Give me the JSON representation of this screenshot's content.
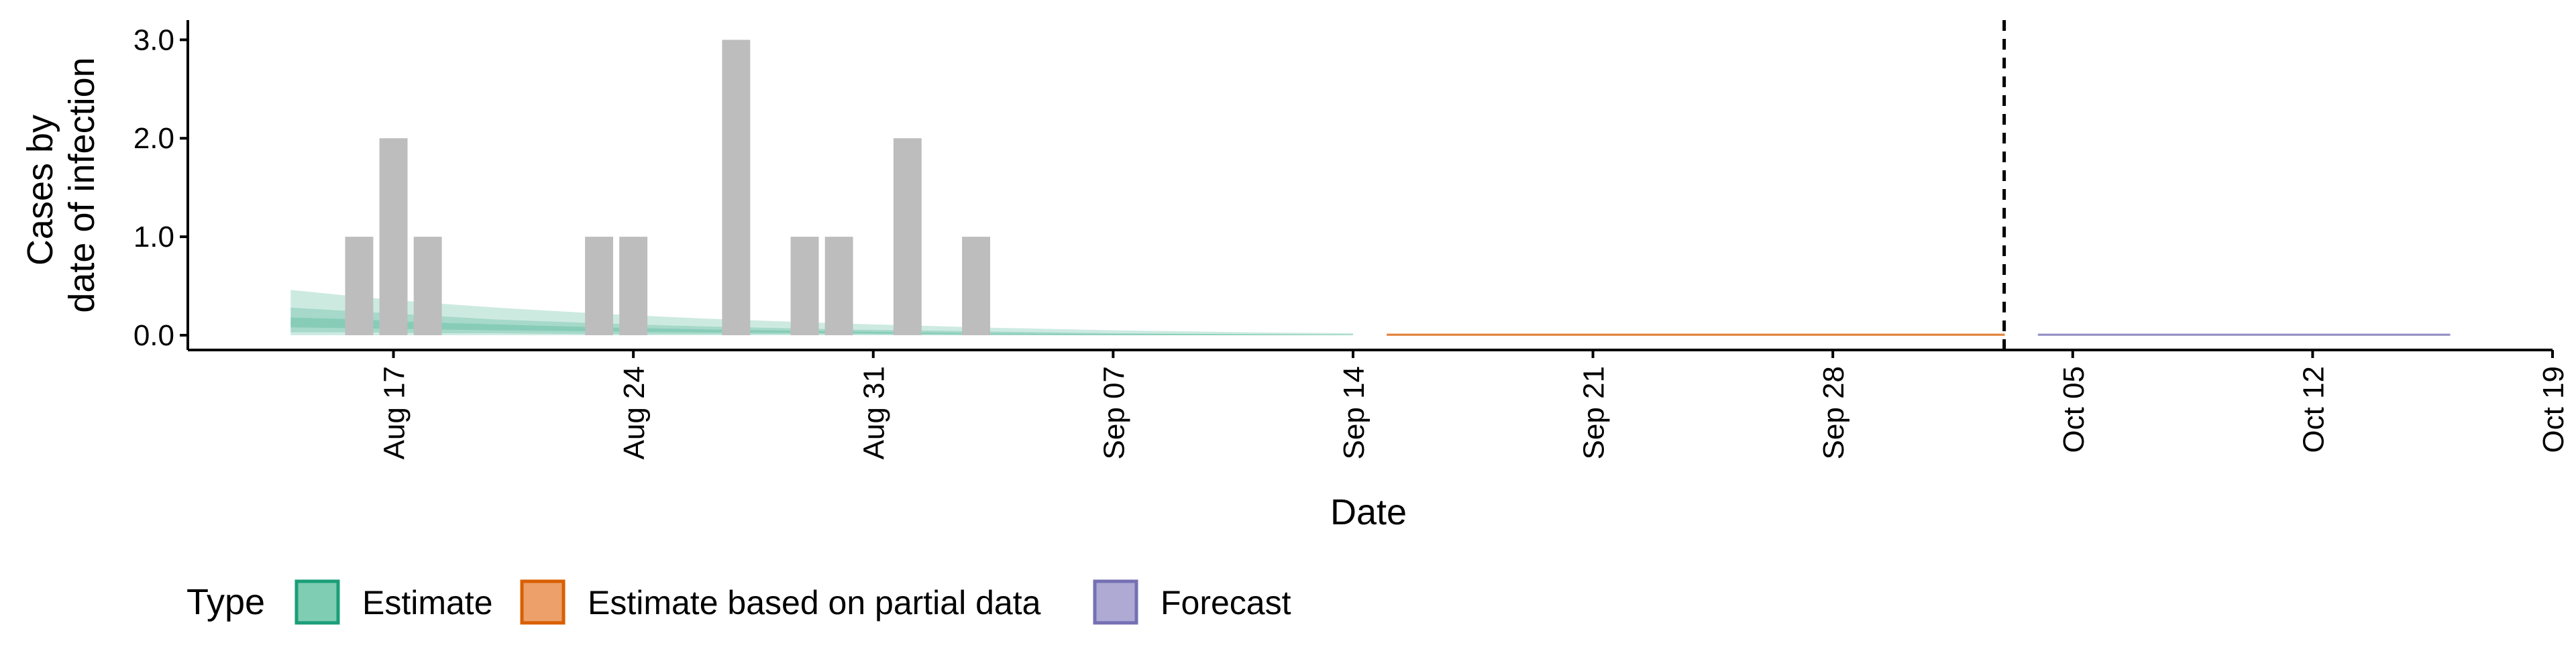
{
  "chart_data": {
    "type": "bar",
    "title": "",
    "xlabel": "Date",
    "ylabel": [
      "Cases by",
      "date of infection"
    ],
    "x_ticks": [
      "Aug 17",
      "Aug 24",
      "Aug 31",
      "Sep 07",
      "Sep 14",
      "Sep 21",
      "Sep 28",
      "Oct 05",
      "Oct 12",
      "Oct 19"
    ],
    "y_ticks": [
      "0.0",
      "1.0",
      "2.0",
      "3.0"
    ],
    "xlim": [
      "2020-08-11",
      "2020-10-19"
    ],
    "ylim": [
      -0.15,
      3.2
    ],
    "grid": false,
    "vline": {
      "x": "2020-10-03",
      "style": "dashed"
    },
    "bars": {
      "dates": [
        "2020-08-16",
        "2020-08-17",
        "2020-08-18",
        "2020-08-23",
        "2020-08-24",
        "2020-08-27",
        "2020-08-29",
        "2020-08-30",
        "2020-09-01",
        "2020-09-03"
      ],
      "values": [
        1,
        2,
        1,
        1,
        1,
        3,
        1,
        1,
        2,
        1
      ],
      "color": "#bdbdbd"
    },
    "estimate_bands": [
      {
        "type": "Estimate",
        "color": "#1b9e77",
        "dates": [
          "2020-08-14",
          "2020-08-16",
          "2020-08-18",
          "2020-08-20",
          "2020-08-23",
          "2020-08-26",
          "2020-08-30",
          "2020-09-03",
          "2020-09-07",
          "2020-09-11",
          "2020-09-14"
        ],
        "lower": [
          0,
          0,
          0,
          0,
          0,
          0,
          0,
          0,
          0,
          0,
          0
        ],
        "upper": [
          0.46,
          0.39,
          0.33,
          0.28,
          0.22,
          0.17,
          0.12,
          0.08,
          0.05,
          0.03,
          0.02
        ]
      },
      {
        "type": "Estimate",
        "color": "#1b9e77",
        "dates": [
          "2020-08-14",
          "2020-08-16",
          "2020-08-18",
          "2020-08-20",
          "2020-08-23",
          "2020-08-26",
          "2020-08-30",
          "2020-09-03",
          "2020-09-07",
          "2020-09-11",
          "2020-09-14"
        ],
        "lower": [
          0.03,
          0.03,
          0.02,
          0.02,
          0.01,
          0.01,
          0.01,
          0,
          0,
          0,
          0
        ],
        "upper": [
          0.28,
          0.24,
          0.2,
          0.16,
          0.12,
          0.09,
          0.06,
          0.04,
          0.02,
          0.01,
          0.01
        ]
      },
      {
        "type": "Estimate",
        "color": "#1b9e77",
        "dates": [
          "2020-08-14",
          "2020-08-16",
          "2020-08-18",
          "2020-08-20",
          "2020-08-23",
          "2020-08-26",
          "2020-08-30",
          "2020-09-03",
          "2020-09-07",
          "2020-09-11",
          "2020-09-14"
        ],
        "lower": [
          0.08,
          0.07,
          0.06,
          0.05,
          0.04,
          0.03,
          0.02,
          0.01,
          0,
          0,
          0
        ],
        "upper": [
          0.18,
          0.16,
          0.13,
          0.11,
          0.08,
          0.06,
          0.04,
          0.02,
          0.01,
          0.01,
          0
        ]
      },
      {
        "type": "Estimate based on partial data",
        "color": "#d95f02",
        "dates": [
          "2020-09-15",
          "2020-10-03"
        ],
        "lower": [
          0,
          0
        ],
        "upper": [
          0.01,
          0.01
        ]
      },
      {
        "type": "Forecast",
        "color": "#7570b3",
        "dates": [
          "2020-10-04",
          "2020-10-16"
        ],
        "lower": [
          0,
          0
        ],
        "upper": [
          0.01,
          0.01
        ]
      }
    ],
    "legend": {
      "title": "Type",
      "position": "bottom",
      "items": [
        {
          "label": "Estimate",
          "fill": "#7fcdb2",
          "border": "#1b9e77"
        },
        {
          "label": "Estimate based on partial data",
          "fill": "#eda06a",
          "border": "#d95f02"
        },
        {
          "label": "Forecast",
          "fill": "#aeaad4",
          "border": "#7570b3"
        }
      ]
    }
  }
}
